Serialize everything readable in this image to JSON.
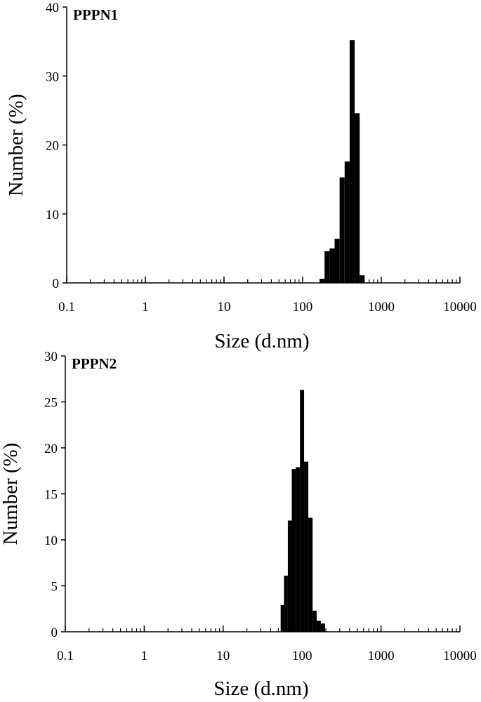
{
  "figure": {
    "colors": {
      "bar": "#000000",
      "axis": "#000000",
      "background": "#ffffff"
    }
  },
  "chart_data": [
    {
      "type": "bar",
      "panel_label": "PPPN1",
      "xlabel": "Size (d.nm)",
      "ylabel": "Number (%)",
      "x_scale": "log",
      "xlim": [
        0.1,
        10000
      ],
      "ylim": [
        0,
        40
      ],
      "x_ticks": [
        "0.1",
        "1",
        "10",
        "100",
        "1000",
        "10000"
      ],
      "y_ticks": [
        "0",
        "10",
        "20",
        "30",
        "40"
      ],
      "grid": false,
      "bins": [
        {
          "x0": 164,
          "x1": 190,
          "value": 0.6
        },
        {
          "x0": 190,
          "x1": 220,
          "value": 4.6
        },
        {
          "x0": 220,
          "x1": 255,
          "value": 5.0
        },
        {
          "x0": 255,
          "x1": 295,
          "value": 6.4
        },
        {
          "x0": 295,
          "x1": 342,
          "value": 15.3
        },
        {
          "x0": 342,
          "x1": 396,
          "value": 17.6
        },
        {
          "x0": 396,
          "x1": 459,
          "value": 35.2
        },
        {
          "x0": 459,
          "x1": 531,
          "value": 24.6
        },
        {
          "x0": 531,
          "x1": 615,
          "value": 1.1
        }
      ]
    },
    {
      "type": "bar",
      "panel_label": "PPPN2",
      "xlabel": "Size (d.nm)",
      "ylabel": "Number (%)",
      "x_scale": "log",
      "xlim": [
        0.1,
        10000
      ],
      "ylim": [
        0,
        30
      ],
      "x_ticks": [
        "0.1",
        "1",
        "10",
        "100",
        "1000",
        "10000"
      ],
      "y_ticks": [
        "0",
        "5",
        "10",
        "15",
        "20",
        "25",
        "30"
      ],
      "grid": false,
      "bins": [
        {
          "x0": 53.5,
          "x1": 59.0,
          "value": 2.9
        },
        {
          "x0": 59.0,
          "x1": 66.0,
          "value": 6.1
        },
        {
          "x0": 66.0,
          "x1": 74.0,
          "value": 12.1
        },
        {
          "x0": 74.0,
          "x1": 83.0,
          "value": 17.7
        },
        {
          "x0": 83.0,
          "x1": 94.0,
          "value": 17.9
        },
        {
          "x0": 94.0,
          "x1": 106.0,
          "value": 26.3
        },
        {
          "x0": 106.0,
          "x1": 120.0,
          "value": 18.5
        },
        {
          "x0": 120.0,
          "x1": 136.0,
          "value": 12.4
        },
        {
          "x0": 136.0,
          "x1": 153.0,
          "value": 2.3
        },
        {
          "x0": 153.0,
          "x1": 173.0,
          "value": 1.2
        },
        {
          "x0": 173.0,
          "x1": 196.0,
          "value": 0.9
        }
      ]
    }
  ]
}
